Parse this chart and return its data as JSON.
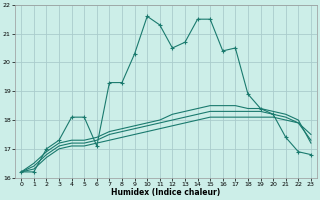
{
  "xlabel": "Humidex (Indice chaleur)",
  "background_color": "#cceee8",
  "grid_color": "#aacccc",
  "line_color": "#1a7a6e",
  "x": [
    0,
    1,
    2,
    3,
    4,
    5,
    6,
    7,
    8,
    9,
    10,
    11,
    12,
    13,
    14,
    15,
    16,
    17,
    18,
    19,
    20,
    21,
    22,
    23
  ],
  "y_main": [
    16.2,
    16.2,
    17.0,
    17.3,
    18.1,
    18.1,
    17.1,
    19.3,
    19.3,
    20.3,
    21.6,
    21.3,
    20.5,
    20.7,
    21.5,
    21.5,
    20.4,
    20.5,
    18.9,
    18.4,
    18.2,
    17.4,
    16.9,
    16.8
  ],
  "y_line1": [
    16.2,
    16.3,
    16.7,
    17.0,
    17.1,
    17.1,
    17.2,
    17.3,
    17.4,
    17.5,
    17.6,
    17.7,
    17.8,
    17.9,
    18.0,
    18.1,
    18.1,
    18.1,
    18.1,
    18.1,
    18.1,
    18.0,
    17.9,
    17.5
  ],
  "y_line2": [
    16.2,
    16.4,
    16.8,
    17.1,
    17.2,
    17.2,
    17.3,
    17.5,
    17.6,
    17.7,
    17.8,
    17.9,
    18.0,
    18.1,
    18.2,
    18.3,
    18.3,
    18.3,
    18.3,
    18.3,
    18.2,
    18.1,
    17.9,
    17.3
  ],
  "y_line3": [
    16.2,
    16.5,
    16.9,
    17.2,
    17.3,
    17.3,
    17.4,
    17.6,
    17.7,
    17.8,
    17.9,
    18.0,
    18.2,
    18.3,
    18.4,
    18.5,
    18.5,
    18.5,
    18.4,
    18.4,
    18.3,
    18.2,
    18.0,
    17.2
  ],
  "ylim": [
    16.0,
    22.0
  ],
  "xlim": [
    -0.5,
    23.5
  ],
  "yticks": [
    16,
    17,
    18,
    19,
    20,
    21,
    22
  ],
  "xticks": [
    0,
    1,
    2,
    3,
    4,
    5,
    6,
    7,
    8,
    9,
    10,
    11,
    12,
    13,
    14,
    15,
    16,
    17,
    18,
    19,
    20,
    21,
    22,
    23
  ]
}
